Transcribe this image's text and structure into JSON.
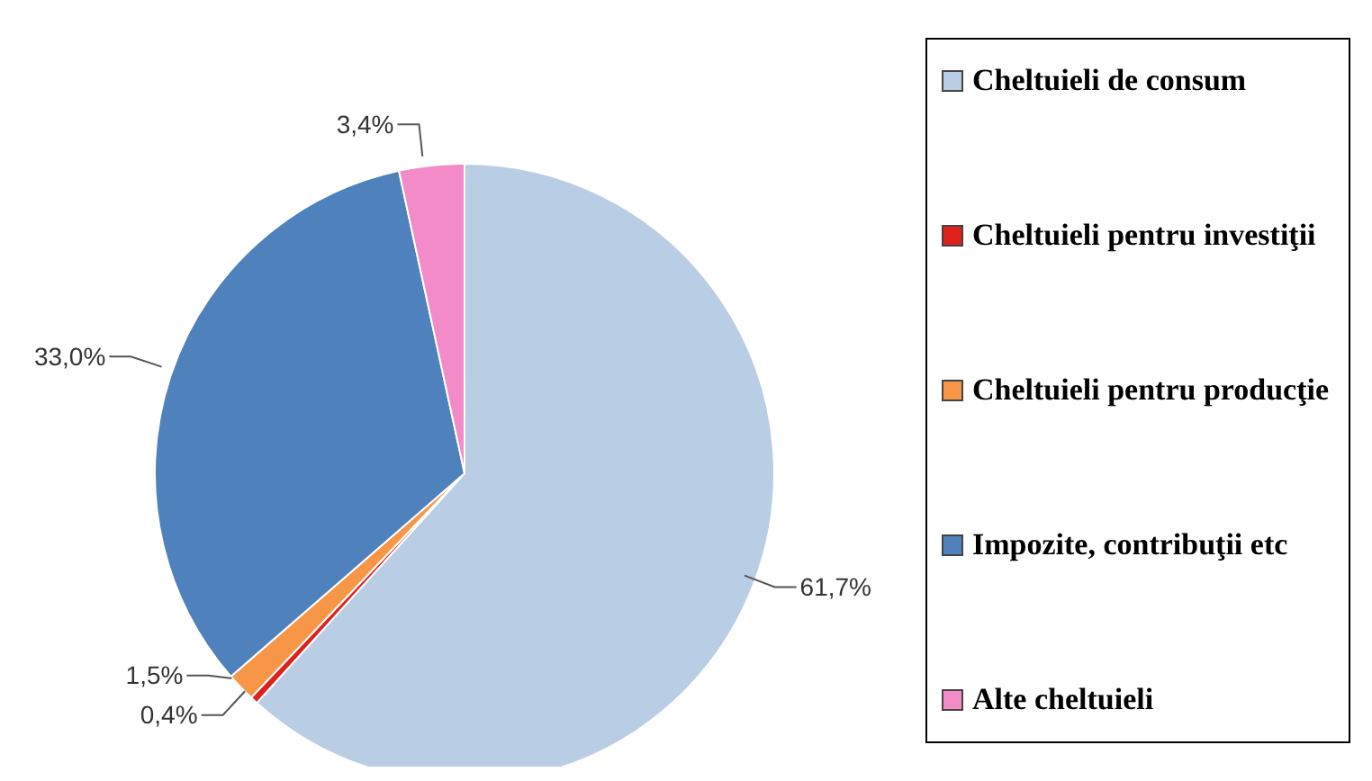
{
  "chart_data": {
    "type": "pie",
    "categories": [
      "Cheltuieli de consum",
      "Cheltuieli pentru investiţii",
      "Cheltuieli pentru producţie",
      "Impozite, contribuţii etc",
      "Alte cheltuieli"
    ],
    "values": [
      61.7,
      0.4,
      1.5,
      33.0,
      3.4
    ],
    "colors": [
      "#b9cde5",
      "#e0201b",
      "#f79646",
      "#4f81bd",
      "#f28bc7"
    ],
    "value_labels": [
      "61,7%",
      "0,4%",
      "1,5%",
      "33,0%",
      "3,4%"
    ],
    "legend": "right"
  }
}
